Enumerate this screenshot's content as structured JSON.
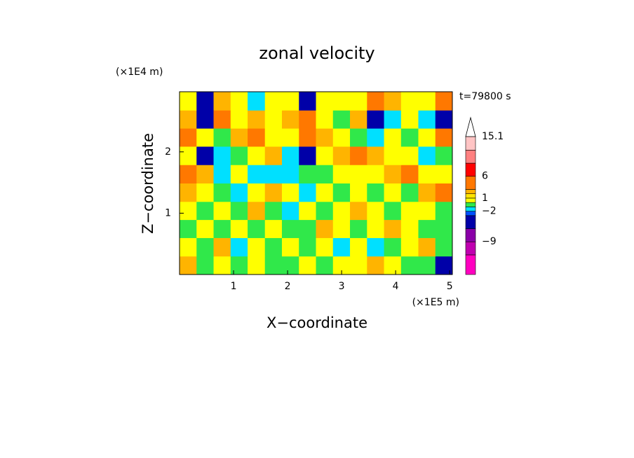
{
  "chart_data": {
    "type": "contourf",
    "title": "zonal velocity",
    "x_label": "X−coordinate",
    "y_label": "Z−coordinate",
    "x_unit": "(×1E5 m)",
    "y_unit": "(×1E4 m)",
    "annotation": "t=79800 s",
    "xlim": [
      0,
      5.05
    ],
    "xticks": [
      1,
      2,
      3,
      4,
      5
    ],
    "ylim": [
      0,
      2.98
    ],
    "yticks": [
      1,
      2
    ],
    "x": [
      0.16,
      0.47,
      0.79,
      1.1,
      1.42,
      1.74,
      2.05,
      2.37,
      2.68,
      3.0,
      3.31,
      3.63,
      3.94,
      4.26,
      4.58,
      4.89
    ],
    "y": [
      0.15,
      0.45,
      0.75,
      1.04,
      1.34,
      1.64,
      1.94,
      2.24,
      2.53,
      2.83
    ],
    "z": [
      [
        2.5,
        -0.5,
        0.5,
        -0.5,
        0.5,
        -0.5,
        -0.5,
        0.5,
        -0.5,
        0.5,
        0.5,
        2.5,
        0.5,
        -0.5,
        -0.5,
        -4
      ],
      [
        0.5,
        -0.5,
        2.5,
        -1.5,
        0.5,
        -0.5,
        0.5,
        -0.5,
        0.5,
        -1.5,
        0.5,
        -1.5,
        -0.5,
        0.5,
        2.5,
        -0.5
      ],
      [
        -0.5,
        0.5,
        -0.5,
        0.5,
        -0.5,
        0.5,
        -0.5,
        -0.5,
        2.5,
        0.5,
        -0.5,
        0.5,
        2.5,
        0.5,
        -0.5,
        -0.5
      ],
      [
        0.5,
        -0.5,
        0.5,
        -0.5,
        2.5,
        -0.5,
        -1.5,
        0.5,
        -0.5,
        0.5,
        2.5,
        0.5,
        -0.5,
        0.5,
        0.5,
        -0.5
      ],
      [
        2.5,
        0.5,
        -0.5,
        -1.5,
        0.5,
        2.5,
        0.5,
        -1.5,
        0.5,
        -0.5,
        0.5,
        -0.5,
        0.5,
        -0.5,
        2.5,
        4
      ],
      [
        4,
        2.5,
        -1.5,
        0.5,
        -1.5,
        -1.5,
        -1.5,
        -0.5,
        -0.5,
        0.5,
        0.5,
        0.5,
        2.5,
        4,
        0.5,
        0.5
      ],
      [
        0.5,
        -4,
        -1.5,
        -0.5,
        0.5,
        2.5,
        -1.5,
        -4,
        0.5,
        2.5,
        4,
        2.5,
        0.5,
        0.5,
        -1.5,
        -0.5
      ],
      [
        4,
        0.5,
        -0.5,
        2.5,
        4,
        0.5,
        0.5,
        4,
        2.5,
        0.5,
        -0.5,
        -1.5,
        0.5,
        -0.5,
        0.5,
        4
      ],
      [
        2.5,
        -4,
        4,
        0.5,
        2.5,
        0.5,
        2.5,
        4,
        0.5,
        -0.5,
        2.5,
        -4,
        -1.5,
        0.5,
        -1.5,
        -4
      ],
      [
        0.5,
        -4,
        2.5,
        0.5,
        -1.5,
        0.5,
        0.5,
        -4,
        0.5,
        0.5,
        0.5,
        4,
        2.5,
        0.5,
        0.5,
        4
      ]
    ],
    "levels": [
      -16.5,
      -12,
      -9,
      -6,
      -3,
      -2,
      -1,
      0,
      1,
      2,
      3,
      6,
      9,
      12,
      15.1
    ],
    "colors": [
      "#ff00c0",
      "#c000b0",
      "#8a00a8",
      "#0000a8",
      "#0050ff",
      "#00e0ff",
      "#30e84a",
      "#ffff00",
      "#ffe400",
      "#ffb400",
      "#ff7800",
      "#ff0000",
      "#ff8080",
      "#ffc4c4"
    ],
    "over_color": "#ffffff",
    "cticks": [
      {
        "value": -9,
        "label": "−9"
      },
      {
        "value": -2,
        "label": "−2"
      },
      1,
      6,
      15.1
    ]
  }
}
